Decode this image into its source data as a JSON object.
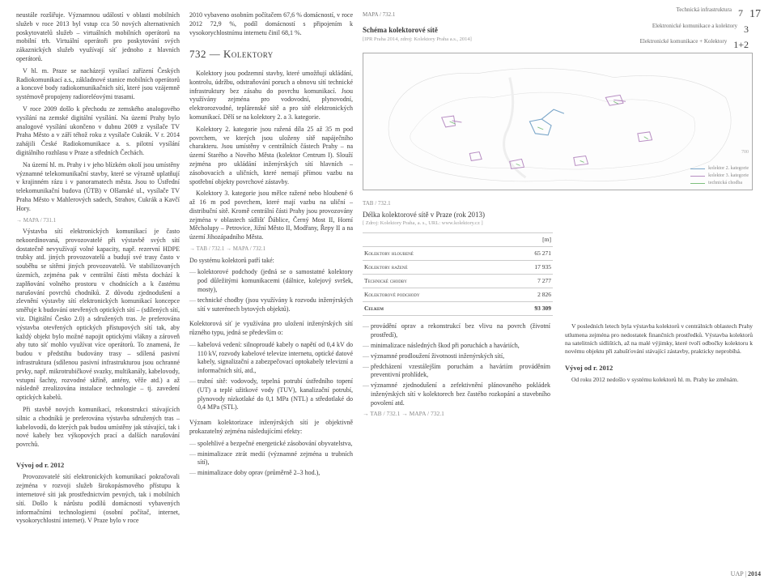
{
  "header": {
    "line1": "Technická infrastruktura",
    "line2": "Elektronické komunikace a kolektory",
    "line3": "Elektronické komunikace + Kolektory",
    "n1": "7",
    "n2": "3",
    "n3": "1+2",
    "page": "17"
  },
  "col1": {
    "p1": "neustále rozšiřuje. Významnou událostí v oblasti mobilních služeb v roce 2013 byl vstup cca 50 nových alternativních poskytovatelů služeb – virtuálních mobilních operátorů na mobilní trh. Virtuální operátoři pro poskytování svých zákaznických služeb využívají síť jednoho z hlavních operátorů.",
    "p2": "V hl. m. Praze se nacházejí vysílací zařízení Českých Radiokomunikací a.s., základnové stanice mobilních operátorů a koncové body radiokomunikačních sítí, které jsou vzájemně systémově propojeny radioreléovými trasami.",
    "p3": "V roce 2009 došlo k přechodu ze zemského analogového vysílání na zemské digitální vysílání. Na území Prahy bylo analogové vysílání ukončeno v dubnu 2009 z vysílače TV Praha Město a v září téhož roku z vysílače Cukrák. V r. 2014 zahájili České Radiokomunikace a. s. pilotní vysílání digitálního rozhlasu v Praze a středních Čechách.",
    "p4": "Na území hl. m. Prahy i v jeho blízkém okolí jsou umístěny významné telekomunikační stavby, které se výrazně uplatňují v krajinném rázu i v panoramatech města. Jsou to Ústřední telekomunikační budova (ÚTB) v Olšanské ul., vysílače TV Praha Město v Mahlerových sadech, Strahov, Cukrák a Kavčí Hory.",
    "ref1": "→ MAPA / 731.1",
    "p5": "Výstavba sítí elektronických komunikací je často nekoordinovaná, provozovatelé při výstavbě svých sítí dostatečně nevyužívají volné kapacity, např. rezervní HDPE trubky atd. jiných provozovatelů a budují své trasy často v souběhu se sítěmi jiných provozovatelů. Ve stabilizovaných územích, zejména pak v centrální části města dochází k zaplňování volného prostoru v chodnících a k častému narušování povrchů chodníků. Z důvodu zjednodušení a zlevnění výstavby sítí elektronických komunikací koncepce směřuje k budování otevřených optických sítí – (sdílených sítí, viz. Digitální Česko 2.0) a sdružených tras. Je preferována výstavba otevřených optických přístupových sítí tak, aby každý objekt bylo možné napojit optickými vlákny a zároveň aby tuto síť mohlo využívat více operátorů. To znamená, že budou v předstihu budovány trasy – sdílená pasivní infrastruktura (sdílenou pasivní infrastrukturou jsou ochranné prvky, např. mikrotrubičkové svazky, multikanály, kabelovody, vstupní šachty, rozvodné skříně, antény, věže atd.) a až následně zrealizována instalace technologie – tj. zavedení optických kabelů.",
    "p6": "Při stavbě nových komunikací, rekonstrukci stávajících silnic a chodníků je preferována výstavba sdružených tras – kabelovodů, do kterých pak budou umístěny jak stávající, tak i nové kabely bez výkopových prací a dalších narušování povrchů.",
    "h_vyvoj": "Vývoj od r. 2012",
    "p7": "Provozovatelé sítí elektronických komunikací pokračovali zejména v rozvoji služeb širokopásmového přístupu k internetové síti jak prostřednictvím pevných, tak i mobilních sítí. Došlo k nárůstu podílů domácností vybavených informačními technologiemi (osobní počítač, internet, vysokorychlostní internet). V Praze bylo v roce"
  },
  "col2": {
    "p1": "2010 vybaveno osobním počítačem 67,6 % domácností, v roce 2012 72,9 %, podíl domácností s připojením k vysokorychlostnímu internetu činil 68,1 %.",
    "h_kolektory": "732 — Kolektory",
    "p2": "Kolektory jsou podzemní stavby, které umožňují ukládání, kontrolu, údržbu, odstraňování poruch a obnovu sítí technické infrastruktury bez zásahu do povrchu komunikací. Jsou využívány zejména pro vodovodní, plynovodní, elektrorozvodné, teplárenské sítě a pro sítě elektronických komunikací. Dělí se na kolektory 2. a 3. kategorie.",
    "p3": "Kolektory 2. kategorie jsou ražená díla 25 až 35 m pod povrchem, ve kterých jsou uloženy sítě napáječního charakteru. Jsou umístěny v centrálních částech Prahy – na území Starého a Nového Města (kolektor Centrum I). Slouží zejména pro ukládání inženýrských sítí hlavních – zásobovacích a uličních, které nemají přímou vazbu na spotřební objekty povrchové zástavby.",
    "p4": "Kolektory 3. kategorie jsou mělce ražené nebo hloubené 6 až 16 m pod povrchem, které mají vazbu na uliční – distribuční sítě. Kromě centrální části Prahy jsou provozovány zejména v oblastech sídlišť Ďáblice, Černý Most II, Horní Měcholupy – Petrovice, Jižní Město II, Modřany, Řepy II a na území Jihozápadního Města.",
    "ref2": "→ TAB / 732.1  → MAPA / 732.1",
    "p5": "Do systému kolektorů patří také:",
    "li1": "kolektorové podchody (jedná se o samostatné kolektory pod důležitými komunikacemi (dálnice, kolejový svršek, mosty),",
    "li2": "technické chodby (jsou využívány k rozvodu inženýrských sítí v suterénech bytových objektů).",
    "p6": "Kolektorová síť je využívána pro uložení inženýrských sítí různého typu, jedná se především o:",
    "li3": "kabelová vedení: silnoproudé kabely o napětí od 0,4 kV do 110 kV, rozvody kabelové televize internetu, optické datové kabely, signalizační a zabezpečovací optokabely televizní a informačních sítí, atd.,",
    "li4": "trubní sítě: vodovody, tepelná potrubí ústředního topení (UT) a teplé užitkové vody (TUV), kanalizační potrubí, plynovody nízkotlaké do 0,1 MPa (NTL) a středotlaké do 0,4 MPa (STL).",
    "p7": "Význam kolektorizace inženýrských sítí je objektivně prokazatelný zejména následujícími efekty:",
    "li5": "spolehlivé a bezpečné energetické zásobování obyvatelstva,",
    "li6": "minimalizace ztrát medií (významné zejména u trubních sítí),",
    "li7": "minimalizace doby oprav (průměrně 2–3 hod.),"
  },
  "col3": {
    "map_label": "MAPA / 732.1",
    "map_title": "Schéma kolektorové sítě",
    "map_src": "[IPR Praha 2014, zdroj: Kolektory Praha a.s., 2014]",
    "map_scale": "700",
    "legend1": "kolektor 2. kategorie",
    "legend2": "kolektor 3. kategorie",
    "legend3": "technická chodba",
    "color1": "#7aa6c9",
    "color2": "#b78dc2",
    "color3": "#7fbf7f",
    "tab_label": "TAB / 732.1",
    "tab_title": "Délka kolektorové sítě v Praze (rok 2013)",
    "tab_src": "[ Zdroj: Kolektory Praha, a. s., URL: www.kolektory.cz ]",
    "unit": "[m]",
    "rows": [
      {
        "label": "Kolektory hloubené",
        "val": "65 271"
      },
      {
        "label": "Kolektory ražené",
        "val": "17 935"
      },
      {
        "label": "Technické chodby",
        "val": "7 277"
      },
      {
        "label": "Kolektorové podchody",
        "val": "2 826"
      }
    ],
    "total_label": "Celkem",
    "total_val": "93 309",
    "bl_li1": "provádění oprav a rekonstrukcí bez vlivu na povrch (životní prostředí),",
    "bl_li2": "minimalizace následných škod při poruchách a haváriích,",
    "bl_li3": "významné prodloužení životnosti inženýrských sítí,",
    "bl_li4": "předcházení vzestálejším poruchám a haváriím prováděním preventivní prohlídek,",
    "bl_li5": "významné zjednodušení a zefektivnění plánovaného pokládek inženýrských sítí v kolektorech bez častého rozkopání a stavebního povolení atd.",
    "bl_ref": "→ TAB / 732.1  → MAPA / 732.1",
    "br_p1": "V posledních letech byla výstavba kolektorů v centrálních oblastech Prahy utlumena zejména pro nedostatek finančních prostředků. Výstavba kolektorů na satelitních sídlištích, až na malé výjimky, které tvoří odbočky kolektoru k novému objektu při zahušťování stávající zástavby, prakticky neprobíhá.",
    "br_h": "Vývoj od r. 2012",
    "br_p2": "Od roku 2012 nedošlo v systému kolektorů hl. m. Prahy ke změnám."
  },
  "footer": {
    "label": "UAP",
    "year": "2014"
  }
}
